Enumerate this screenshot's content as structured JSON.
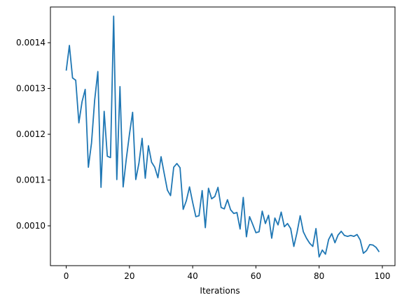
{
  "chart_data": {
    "type": "line",
    "title": "",
    "xlabel": "Iterations",
    "ylabel": "",
    "xlim": [
      -5,
      104
    ],
    "ylim": [
      0.000913,
      0.001478
    ],
    "grid": false,
    "line_color": "#1f77b4",
    "x_ticks": [
      0,
      20,
      40,
      60,
      80,
      100
    ],
    "x_tick_labels": [
      "0",
      "20",
      "40",
      "60",
      "80",
      "100"
    ],
    "y_ticks": [
      0.001,
      0.0011,
      0.0012,
      0.0013,
      0.0014
    ],
    "y_tick_labels": [
      "0.0010",
      "0.0011",
      "0.0012",
      "0.0013",
      "0.0014"
    ],
    "series": [
      {
        "x": [
          0,
          1,
          2,
          3,
          4,
          5,
          6,
          7,
          8,
          9,
          10,
          11,
          12,
          13,
          14,
          15,
          16,
          17,
          18,
          19,
          20,
          21,
          22,
          23,
          24,
          25,
          26,
          27,
          28,
          29,
          30,
          31,
          32,
          33,
          34,
          35,
          36,
          37,
          38,
          39,
          40,
          41,
          42,
          43,
          44,
          45,
          46,
          47,
          48,
          49,
          50,
          51,
          52,
          53,
          54,
          55,
          56,
          57,
          58,
          59,
          60,
          61,
          62,
          63,
          64,
          65,
          66,
          67,
          68,
          69,
          70,
          71,
          72,
          73,
          74,
          75,
          76,
          77,
          78,
          79,
          80,
          81,
          82,
          83,
          84,
          85,
          86,
          87,
          88,
          89,
          90,
          91,
          92,
          93,
          94,
          95,
          96,
          97,
          98,
          99
        ],
        "values": [
          0.001339,
          0.001394,
          0.001323,
          0.001318,
          0.001225,
          0.001271,
          0.001298,
          0.001128,
          0.001181,
          0.001275,
          0.001337,
          0.001084,
          0.00125,
          0.001152,
          0.001149,
          0.001458,
          0.001101,
          0.001304,
          0.001085,
          0.001146,
          0.0012,
          0.001248,
          0.001101,
          0.001137,
          0.001191,
          0.001104,
          0.001175,
          0.001139,
          0.001128,
          0.001105,
          0.001151,
          0.001114,
          0.001078,
          0.001066,
          0.001128,
          0.001136,
          0.001127,
          0.001036,
          0.001055,
          0.001085,
          0.001051,
          0.00102,
          0.001022,
          0.001077,
          0.000996,
          0.001082,
          0.001059,
          0.001064,
          0.001084,
          0.00104,
          0.001037,
          0.001057,
          0.001035,
          0.001027,
          0.001029,
          0.000993,
          0.001062,
          0.000976,
          0.00102,
          0.001003,
          0.000985,
          0.000987,
          0.001032,
          0.001005,
          0.001023,
          0.000973,
          0.001017,
          0.001002,
          0.00103,
          0.000998,
          0.001005,
          0.000994,
          0.000955,
          0.000985,
          0.001022,
          0.000987,
          0.000973,
          0.000962,
          0.000955,
          0.000994,
          0.000932,
          0.000947,
          0.000938,
          0.00097,
          0.000983,
          0.000963,
          0.00098,
          0.000988,
          0.000979,
          0.000977,
          0.000979,
          0.000977,
          0.000981,
          0.000969,
          0.00094,
          0.000946,
          0.000959,
          0.000958,
          0.000953,
          0.000943
        ]
      }
    ]
  }
}
